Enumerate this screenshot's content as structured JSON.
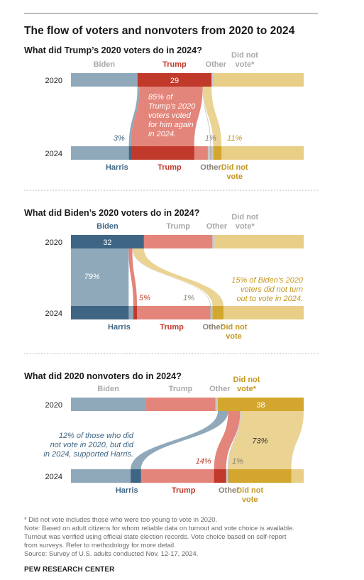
{
  "title": "The flow of voters and nonvoters from 2020 to 2024",
  "colors": {
    "biden": "#8fa9ba",
    "biden_dark": "#3f6584",
    "trump": "#e3857a",
    "trump_dark": "#c0392b",
    "other": "#c9c9c9",
    "other_dark": "#b1aba1",
    "nonvote": "#e8ce87",
    "nonvote_dark": "#d3a72e",
    "harris_label": "#3f6584",
    "trump_label": "#c0392b",
    "other_label": "#8a8173",
    "nonvote_label": "#c49720",
    "light_label": "#a9a9a9",
    "year_label": "#222222"
  },
  "chart_data": [
    {
      "type": "sankey",
      "id": "trump2020",
      "title": "What did Trump’s 2020 voters do in 2024?",
      "rows": [
        "2020",
        "2024"
      ],
      "top_segments": [
        {
          "key": "biden",
          "label": "Biden",
          "value": 26
        },
        {
          "key": "trump",
          "label": "Trump",
          "value": 29
        },
        {
          "key": "other",
          "label": "Other",
          "value": 1
        },
        {
          "key": "nonvote",
          "label": "Did not vote*",
          "value": 35
        }
      ],
      "bottom_segments": [
        {
          "key": "harris",
          "label": "Harris",
          "value": 22
        },
        {
          "key": "trump",
          "label": "Trump",
          "value": 28
        },
        {
          "key": "other",
          "label": "Other",
          "value": 2
        },
        {
          "key": "nonvote",
          "label": "Did not vote",
          "value": 33
        }
      ],
      "focus": "trump",
      "focus_value_label": "29",
      "flows": [
        {
          "to": "harris",
          "share": 3,
          "label": "3%"
        },
        {
          "to": "trump",
          "share": 85,
          "label": "85%"
        },
        {
          "to": "other",
          "share": 1,
          "label": "1%"
        },
        {
          "to": "nonvote",
          "share": 11,
          "label": "11%"
        }
      ],
      "annotation": [
        "85% of",
        "Trump’s 2020",
        "voters voted",
        "for him again",
        "in 2024."
      ]
    },
    {
      "type": "sankey",
      "id": "biden2020",
      "title": "What did Biden’s 2020 voters do in 2024?",
      "rows": [
        "2020",
        "2024"
      ],
      "top_segments": [
        {
          "key": "biden",
          "label": "Biden",
          "value": 32
        },
        {
          "key": "trump",
          "label": "Trump",
          "value": 30
        },
        {
          "key": "other",
          "label": "Other",
          "value": 1
        },
        {
          "key": "nonvote",
          "label": "Did not vote*",
          "value": 39
        }
      ],
      "bottom_segments": [
        {
          "key": "harris",
          "label": "Harris",
          "value": 26
        },
        {
          "key": "trump",
          "label": "Trump",
          "value": 32
        },
        {
          "key": "other",
          "label": "Other",
          "value": 1
        },
        {
          "key": "nonvote",
          "label": "Did not vote",
          "value": 38
        }
      ],
      "focus": "biden",
      "focus_value_label": "32",
      "flows": [
        {
          "to": "harris",
          "share": 79,
          "label": "79%"
        },
        {
          "to": "trump",
          "share": 5,
          "label": "5%"
        },
        {
          "to": "other",
          "share": 1,
          "label": "1%"
        },
        {
          "to": "nonvote",
          "share": 15,
          "label": ""
        }
      ],
      "annotation": [
        "15% of Biden’s 2020",
        "voters did not turn",
        "out to vote in 2024."
      ]
    },
    {
      "type": "sankey",
      "id": "nonvoters2020",
      "title": "What did 2020 nonvoters do in 2024?",
      "rows": [
        "2020",
        "2024"
      ],
      "top_segments": [
        {
          "key": "biden",
          "label": "Biden",
          "value": 33
        },
        {
          "key": "trump",
          "label": "Trump",
          "value": 31
        },
        {
          "key": "other",
          "label": "Other",
          "value": 1
        },
        {
          "key": "nonvote",
          "label": "Did not vote*",
          "value": 38
        }
      ],
      "bottom_segments": [
        {
          "key": "harris",
          "label": "Harris",
          "value": 28
        },
        {
          "key": "trump",
          "label": "Trump",
          "value": 34
        },
        {
          "key": "other",
          "label": "Other",
          "value": 1
        },
        {
          "key": "nonvote",
          "label": "Did not vote",
          "value": 30
        }
      ],
      "focus": "nonvote",
      "focus_value_label": "38",
      "flows": [
        {
          "to": "harris",
          "share": 12,
          "label": ""
        },
        {
          "to": "trump",
          "share": 14,
          "label": "14%"
        },
        {
          "to": "other",
          "share": 1,
          "label": "1%"
        },
        {
          "to": "nonvote",
          "share": 73,
          "label": "73%"
        }
      ],
      "annotation": [
        "12% of those who did",
        "not vote in 2020, but did",
        "in 2024, supported Harris."
      ]
    }
  ],
  "footnote": "* Did not vote includes those who were too young to vote in 2020.",
  "note": [
    "Note: Based on adult citizens for whom reliable data on turnout and vote choice is available.",
    "Turnout was verified using official state election records. Vote choice based on self-report",
    "from surveys. Refer to methodology for more detail."
  ],
  "source": "Source: Survey of U.S. adults conducted Nov. 12-17, 2024.",
  "org": "PEW RESEARCH CENTER"
}
